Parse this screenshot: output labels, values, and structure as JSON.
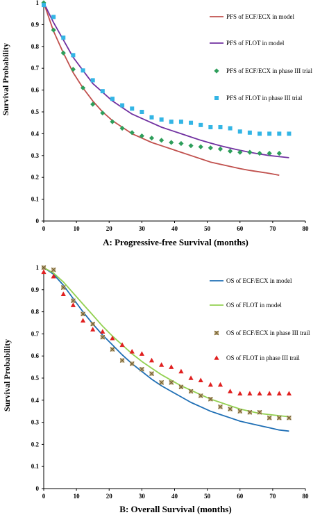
{
  "chart_data": [
    {
      "type": "line",
      "xlabel": "A: Progressive-free Survival (months)",
      "ylabel": "Survival  Probability",
      "xlim": [
        0,
        80
      ],
      "ylim": [
        0,
        1
      ],
      "xticks": [
        0,
        10,
        20,
        30,
        40,
        50,
        60,
        70,
        80
      ],
      "yticks": [
        0,
        0.1,
        0.2,
        0.3,
        0.4,
        0.5,
        0.6,
        0.7,
        0.8,
        0.9,
        1
      ],
      "grid": false,
      "legend_position": "right",
      "series": [
        {
          "name": "PFS of ECF/ECX in model",
          "kind": "line",
          "color": "#c0504d",
          "x": [
            0,
            3,
            6,
            9,
            12,
            15,
            18,
            21,
            24,
            27,
            30,
            33,
            36,
            39,
            42,
            45,
            48,
            51,
            54,
            57,
            60,
            63,
            66,
            69,
            72
          ],
          "y": [
            1.0,
            0.87,
            0.77,
            0.68,
            0.61,
            0.55,
            0.5,
            0.46,
            0.43,
            0.4,
            0.38,
            0.36,
            0.345,
            0.33,
            0.315,
            0.3,
            0.285,
            0.27,
            0.26,
            0.25,
            0.24,
            0.232,
            0.225,
            0.218,
            0.21
          ]
        },
        {
          "name": "PFS of FLOT in model",
          "kind": "line",
          "color": "#7030a0",
          "x": [
            0,
            3,
            6,
            9,
            12,
            15,
            18,
            21,
            24,
            27,
            30,
            33,
            36,
            39,
            42,
            45,
            48,
            51,
            54,
            57,
            60,
            63,
            66,
            69,
            72,
            75
          ],
          "y": [
            1.0,
            0.91,
            0.83,
            0.75,
            0.69,
            0.63,
            0.59,
            0.55,
            0.52,
            0.49,
            0.47,
            0.45,
            0.43,
            0.415,
            0.4,
            0.385,
            0.37,
            0.357,
            0.345,
            0.334,
            0.324,
            0.315,
            0.307,
            0.3,
            0.295,
            0.29
          ]
        },
        {
          "name": "PFS of ECF/ECX in phase III trial",
          "kind": "diamond",
          "color": "#2e9e5b",
          "x": [
            0,
            3,
            6,
            9,
            12,
            15,
            18,
            21,
            24,
            27,
            30,
            33,
            36,
            39,
            42,
            45,
            48,
            51,
            54,
            57,
            60,
            63,
            66,
            69,
            72
          ],
          "y": [
            1.0,
            0.875,
            0.77,
            0.695,
            0.61,
            0.535,
            0.495,
            0.455,
            0.425,
            0.405,
            0.39,
            0.38,
            0.37,
            0.36,
            0.355,
            0.345,
            0.34,
            0.335,
            0.33,
            0.32,
            0.315,
            0.315,
            0.31,
            0.31,
            0.31
          ]
        },
        {
          "name": "PFS of FLOT in phase III trial",
          "kind": "square",
          "color": "#33b5e5",
          "x": [
            0,
            3,
            6,
            9,
            12,
            15,
            18,
            21,
            24,
            27,
            30,
            33,
            36,
            39,
            42,
            45,
            48,
            51,
            54,
            57,
            60,
            63,
            66,
            69,
            72,
            75
          ],
          "y": [
            0.99,
            0.935,
            0.84,
            0.76,
            0.69,
            0.645,
            0.595,
            0.56,
            0.53,
            0.515,
            0.5,
            0.475,
            0.465,
            0.455,
            0.455,
            0.45,
            0.44,
            0.43,
            0.43,
            0.425,
            0.41,
            0.405,
            0.4,
            0.4,
            0.4,
            0.4
          ]
        }
      ]
    },
    {
      "type": "line",
      "xlabel": "B: Overall Survival (months)",
      "ylabel": "Survival Probability",
      "xlim": [
        0,
        80
      ],
      "ylim": [
        0,
        1
      ],
      "xticks": [
        0,
        10,
        20,
        30,
        40,
        50,
        60,
        70,
        80
      ],
      "yticks": [
        0,
        0.1,
        0.2,
        0.3,
        0.4,
        0.5,
        0.6,
        0.7,
        0.8,
        0.9,
        1
      ],
      "grid": false,
      "legend_position": "right",
      "series": [
        {
          "name": "OS of ECF/ECX in model",
          "kind": "line",
          "color": "#1f6fb5",
          "x": [
            0,
            3,
            6,
            9,
            12,
            15,
            18,
            21,
            24,
            27,
            30,
            33,
            36,
            39,
            42,
            45,
            48,
            51,
            54,
            57,
            60,
            63,
            66,
            69,
            72,
            75
          ],
          "y": [
            1.0,
            0.97,
            0.92,
            0.86,
            0.8,
            0.745,
            0.695,
            0.65,
            0.605,
            0.565,
            0.53,
            0.495,
            0.465,
            0.44,
            0.415,
            0.39,
            0.37,
            0.35,
            0.335,
            0.32,
            0.305,
            0.295,
            0.285,
            0.275,
            0.265,
            0.26
          ]
        },
        {
          "name": "OS of FLOT in model",
          "kind": "line",
          "color": "#92d050",
          "x": [
            0,
            3,
            6,
            9,
            12,
            15,
            18,
            21,
            24,
            27,
            30,
            33,
            36,
            39,
            42,
            45,
            48,
            51,
            54,
            57,
            60,
            63,
            66,
            69,
            72,
            75
          ],
          "y": [
            1.0,
            0.975,
            0.935,
            0.885,
            0.835,
            0.785,
            0.735,
            0.69,
            0.65,
            0.61,
            0.575,
            0.545,
            0.515,
            0.49,
            0.465,
            0.445,
            0.425,
            0.405,
            0.39,
            0.375,
            0.36,
            0.35,
            0.34,
            0.335,
            0.33,
            0.325
          ]
        },
        {
          "name": "OS of ECF/ECX in phase III trail",
          "kind": "asterisk",
          "color": "#b8a06a",
          "x": [
            0,
            3,
            6,
            9,
            12,
            15,
            18,
            21,
            24,
            27,
            30,
            33,
            36,
            39,
            42,
            45,
            48,
            51,
            54,
            57,
            60,
            63,
            66,
            69,
            72,
            75
          ],
          "y": [
            1.0,
            0.99,
            0.91,
            0.85,
            0.79,
            0.745,
            0.685,
            0.63,
            0.58,
            0.565,
            0.54,
            0.52,
            0.48,
            0.48,
            0.46,
            0.44,
            0.42,
            0.405,
            0.37,
            0.36,
            0.35,
            0.345,
            0.345,
            0.32,
            0.32,
            0.32
          ]
        },
        {
          "name": "OS of FLOT in phase III trail",
          "kind": "triangle",
          "color": "#e02020",
          "x": [
            0,
            3,
            6,
            9,
            12,
            15,
            18,
            21,
            24,
            27,
            30,
            33,
            36,
            39,
            42,
            45,
            48,
            51,
            54,
            57,
            60,
            63,
            66,
            69,
            72,
            75
          ],
          "y": [
            0.98,
            0.96,
            0.88,
            0.83,
            0.76,
            0.72,
            0.71,
            0.68,
            0.65,
            0.62,
            0.61,
            0.58,
            0.56,
            0.55,
            0.53,
            0.5,
            0.49,
            0.47,
            0.47,
            0.44,
            0.43,
            0.43,
            0.43,
            0.43,
            0.43,
            0.43
          ]
        }
      ]
    }
  ]
}
